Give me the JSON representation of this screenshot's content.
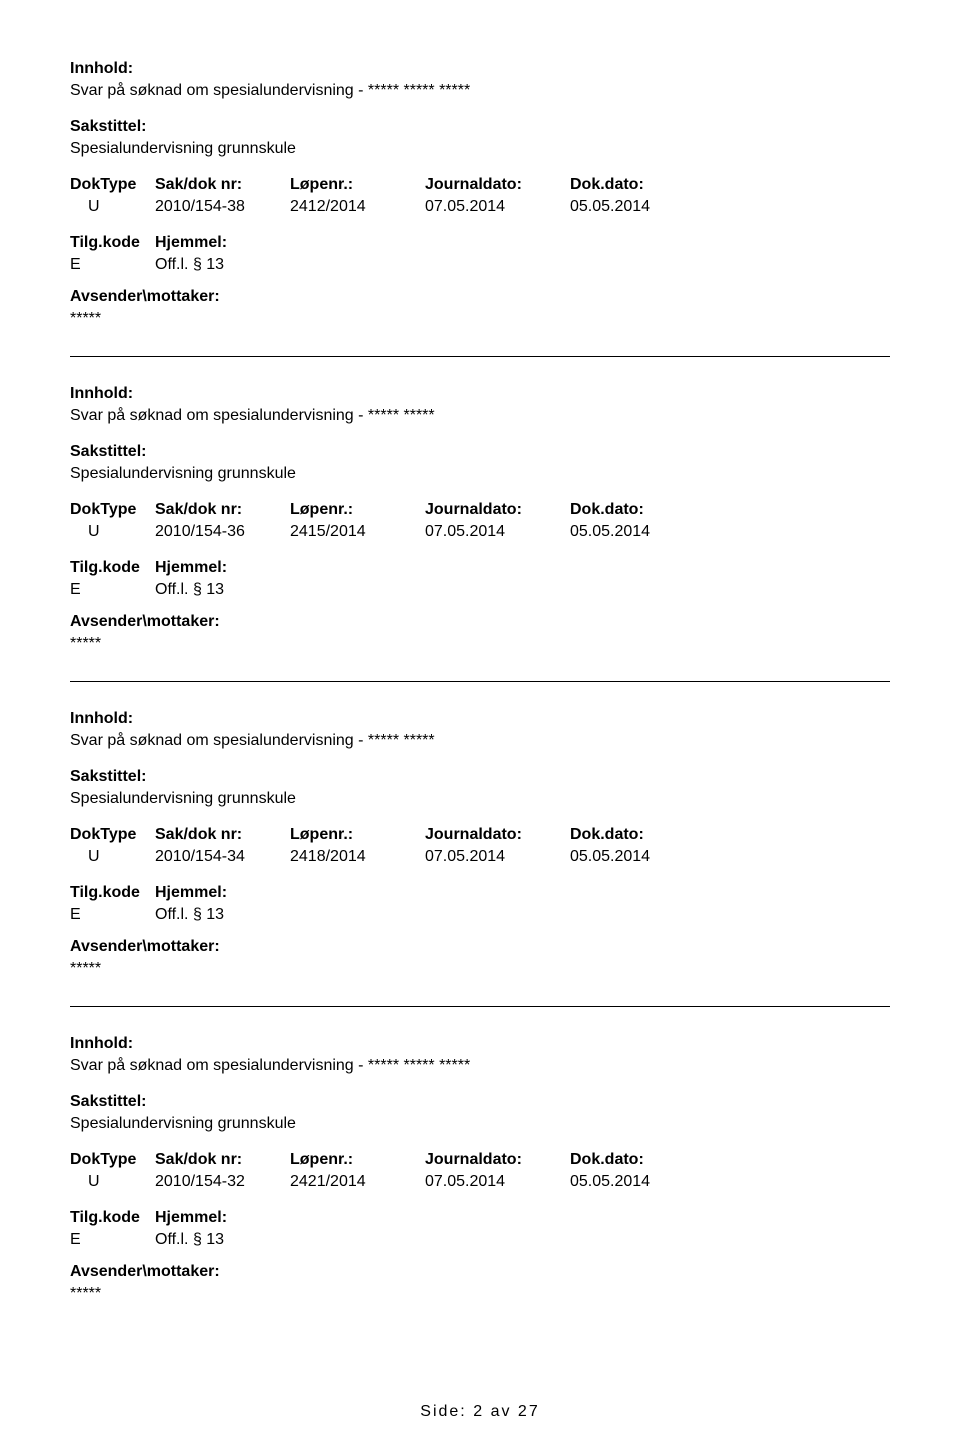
{
  "labels": {
    "innhold": "Innhold:",
    "sakstittel": "Sakstittel:",
    "doktype": "DokType",
    "sakdok": "Sak/dok nr:",
    "lopenr": "Løpenr.:",
    "journaldato": "Journaldato:",
    "dokdato": "Dok.dato:",
    "tilgkode": "Tilg.kode",
    "hjemmel": "Hjemmel:",
    "avsender": "Avsender\\mottaker:"
  },
  "entries": [
    {
      "innhold": "Svar på søknad om spesialundervisning - ***** ***** *****",
      "sakstittel": "Spesialundervisning grunnskule",
      "doktype": "U",
      "sakdok": "2010/154-38",
      "lopenr": "2412/2014",
      "journaldato": "07.05.2014",
      "dokdato": "05.05.2014",
      "tilgkode": "E",
      "hjemmel": "Off.l. § 13",
      "avsender": "*****"
    },
    {
      "innhold": "Svar på søknad om spesialundervisning - ***** *****",
      "sakstittel": "Spesialundervisning grunnskule",
      "doktype": "U",
      "sakdok": "2010/154-36",
      "lopenr": "2415/2014",
      "journaldato": "07.05.2014",
      "dokdato": "05.05.2014",
      "tilgkode": "E",
      "hjemmel": "Off.l. § 13",
      "avsender": "*****"
    },
    {
      "innhold": "Svar på søknad om spesialundervisning - ***** *****",
      "sakstittel": "Spesialundervisning grunnskule",
      "doktype": "U",
      "sakdok": "2010/154-34",
      "lopenr": "2418/2014",
      "journaldato": "07.05.2014",
      "dokdato": "05.05.2014",
      "tilgkode": "E",
      "hjemmel": "Off.l. § 13",
      "avsender": "*****"
    },
    {
      "innhold": "Svar på søknad om spesialundervisning - ***** ***** *****",
      "sakstittel": "Spesialundervisning grunnskule",
      "doktype": "U",
      "sakdok": "2010/154-32",
      "lopenr": "2421/2014",
      "journaldato": "07.05.2014",
      "dokdato": "05.05.2014",
      "tilgkode": "E",
      "hjemmel": "Off.l. § 13",
      "avsender": "*****"
    }
  ],
  "footer": {
    "prefix": "Side:",
    "page": "2",
    "of": "av",
    "total": "27"
  }
}
